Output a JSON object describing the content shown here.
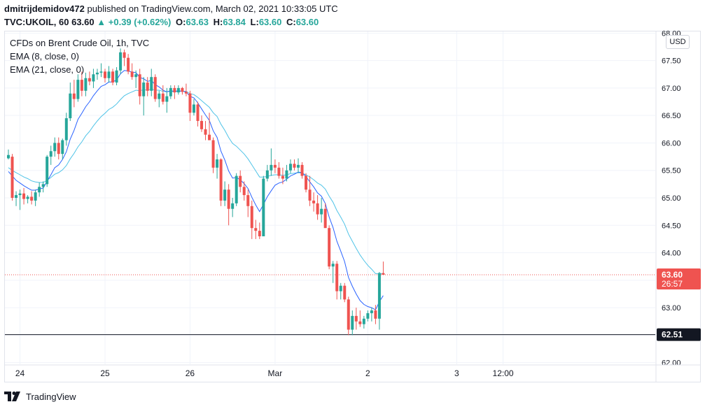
{
  "header": {
    "author": "dmitrijdemidov472",
    "published_text": "published on TradingView.com, March 02, 2021 10:33:05 UTC",
    "symbol": "TVC:UKOIL, 60",
    "last_price": "63.60",
    "change": "+0.39 (+0.62%)",
    "open_label": "O:",
    "open": "63.63",
    "high_label": "H:",
    "high": "63.84",
    "low_label": "L:",
    "low": "63.60",
    "close_label": "C:",
    "close": "63.60"
  },
  "legend": {
    "title": "CFDs on Brent Crude Oil, 1h, TVC",
    "ema_fast": "EMA (8, close, 0)",
    "ema_slow": "EMA (21, close, 0)"
  },
  "currency": "USD",
  "footer": {
    "brand": "TradingView"
  },
  "colors": {
    "up": "#26a69a",
    "down": "#ef5350",
    "ema_fast": "#2962ff",
    "ema_slow": "#4fc3e7",
    "axis_text": "#131722",
    "grid": "#f0f3fa"
  },
  "chart_data": {
    "type": "candlestick",
    "title": "CFDs on Brent Crude Oil, 1h, TVC",
    "ylim": [
      61.97,
      68.03
    ],
    "y_ticks": [
      "62.00",
      "62.50",
      "63.00",
      "63.50",
      "64.00",
      "64.50",
      "65.00",
      "65.50",
      "66.00",
      "66.50",
      "67.00",
      "67.50",
      "68.00"
    ],
    "x_ticks": [
      {
        "label": "24",
        "index": 3
      },
      {
        "label": "25",
        "index": 25
      },
      {
        "label": "26",
        "index": 47
      },
      {
        "label": "Mar",
        "index": 69
      },
      {
        "label": "2",
        "index": 93
      },
      {
        "label": "3",
        "index": 116
      },
      {
        "label": "12:00",
        "index": 128
      }
    ],
    "x_count": 134,
    "current_price": {
      "value": 63.6,
      "label": "63.60",
      "countdown": "26:57"
    },
    "support_line": {
      "value": 62.51,
      "label": "62.51"
    },
    "candles": [
      [
        65.72,
        65.88,
        65.7,
        65.78
      ],
      [
        65.75,
        65.8,
        64.95,
        65.0
      ],
      [
        65.0,
        65.12,
        64.85,
        65.05
      ],
      [
        65.05,
        65.15,
        64.78,
        65.08
      ],
      [
        65.08,
        65.18,
        64.88,
        64.98
      ],
      [
        64.98,
        65.05,
        64.9,
        65.02
      ],
      [
        65.02,
        65.12,
        64.88,
        64.95
      ],
      [
        64.95,
        65.15,
        64.85,
        65.1
      ],
      [
        65.1,
        65.28,
        65.02,
        65.2
      ],
      [
        65.2,
        65.3,
        65.1,
        65.25
      ],
      [
        65.25,
        65.78,
        65.2,
        65.75
      ],
      [
        65.75,
        65.95,
        65.6,
        65.85
      ],
      [
        65.85,
        66.1,
        65.75,
        66.0
      ],
      [
        66.0,
        66.1,
        65.7,
        65.8
      ],
      [
        65.8,
        66.08,
        65.7,
        66.05
      ],
      [
        66.05,
        66.55,
        65.95,
        66.45
      ],
      [
        66.45,
        67.1,
        66.4,
        66.9
      ],
      [
        66.9,
        67.15,
        66.65,
        66.8
      ],
      [
        66.8,
        67.25,
        66.75,
        67.15
      ],
      [
        67.15,
        67.3,
        66.85,
        66.95
      ],
      [
        66.95,
        67.28,
        66.85,
        67.18
      ],
      [
        67.18,
        67.3,
        67.05,
        67.12
      ],
      [
        67.12,
        67.35,
        67.0,
        67.25
      ],
      [
        67.25,
        67.35,
        67.15,
        67.28
      ],
      [
        67.28,
        67.45,
        67.2,
        67.3
      ],
      [
        67.3,
        67.35,
        67.1,
        67.18
      ],
      [
        67.18,
        67.4,
        67.1,
        67.3
      ],
      [
        67.3,
        67.35,
        67.05,
        67.1
      ],
      [
        67.1,
        67.38,
        67.05,
        67.32
      ],
      [
        67.32,
        67.72,
        67.25,
        67.65
      ],
      [
        67.65,
        67.7,
        67.4,
        67.55
      ],
      [
        67.55,
        67.62,
        67.25,
        67.3
      ],
      [
        67.3,
        67.45,
        67.15,
        67.2
      ],
      [
        67.2,
        67.32,
        67.0,
        67.25
      ],
      [
        67.25,
        67.35,
        66.7,
        66.85
      ],
      [
        66.85,
        67.2,
        66.5,
        67.1
      ],
      [
        67.1,
        67.2,
        66.85,
        66.95
      ],
      [
        66.95,
        67.35,
        66.85,
        67.2
      ],
      [
        67.2,
        67.25,
        66.75,
        66.8
      ],
      [
        66.8,
        66.95,
        66.65,
        66.9
      ],
      [
        66.9,
        67.05,
        66.7,
        66.75
      ],
      [
        66.75,
        67.0,
        66.55,
        66.85
      ],
      [
        66.85,
        67.05,
        66.8,
        67.0
      ],
      [
        67.0,
        67.05,
        66.8,
        66.92
      ],
      [
        66.92,
        67.05,
        66.88,
        67.0
      ],
      [
        67.0,
        67.02,
        66.88,
        66.93
      ],
      [
        66.93,
        67.08,
        66.85,
        66.9
      ],
      [
        66.9,
        66.95,
        66.4,
        66.55
      ],
      [
        66.55,
        66.8,
        66.5,
        66.7
      ],
      [
        66.7,
        66.75,
        66.3,
        66.4
      ],
      [
        66.4,
        66.5,
        66.2,
        66.25
      ],
      [
        66.25,
        66.4,
        66.05,
        66.15
      ],
      [
        66.15,
        66.55,
        66.1,
        66.05
      ],
      [
        66.05,
        66.1,
        65.45,
        65.55
      ],
      [
        65.55,
        65.8,
        65.35,
        65.7
      ],
      [
        65.7,
        65.72,
        64.85,
        64.95
      ],
      [
        64.95,
        65.3,
        64.85,
        65.15
      ],
      [
        65.15,
        65.25,
        64.5,
        64.8
      ],
      [
        64.8,
        65.0,
        64.65,
        64.9
      ],
      [
        64.9,
        65.45,
        64.85,
        65.4
      ],
      [
        65.4,
        65.5,
        65.1,
        65.2
      ],
      [
        65.2,
        65.3,
        64.95,
        65.05
      ],
      [
        65.05,
        65.15,
        64.65,
        64.85
      ],
      [
        64.85,
        64.95,
        64.25,
        64.45
      ],
      [
        64.45,
        64.6,
        64.25,
        64.4
      ],
      [
        64.4,
        64.55,
        64.25,
        64.3
      ],
      [
        64.3,
        65.4,
        64.3,
        65.35
      ],
      [
        65.35,
        65.6,
        65.3,
        65.5
      ],
      [
        65.5,
        65.9,
        65.4,
        65.6
      ],
      [
        65.6,
        65.7,
        65.45,
        65.55
      ],
      [
        65.55,
        65.65,
        65.35,
        65.4
      ],
      [
        65.4,
        65.55,
        65.25,
        65.35
      ],
      [
        65.35,
        65.6,
        65.3,
        65.5
      ],
      [
        65.5,
        65.7,
        65.45,
        65.62
      ],
      [
        65.62,
        65.7,
        65.5,
        65.55
      ],
      [
        65.55,
        65.72,
        65.45,
        65.6
      ],
      [
        65.6,
        65.65,
        65.35,
        65.4
      ],
      [
        65.4,
        65.45,
        65.1,
        65.15
      ],
      [
        65.15,
        65.4,
        64.85,
        64.95
      ],
      [
        64.95,
        65.1,
        64.75,
        64.9
      ],
      [
        64.9,
        65.05,
        64.6,
        64.7
      ],
      [
        64.7,
        65.0,
        64.55,
        64.8
      ],
      [
        64.8,
        64.9,
        64.5,
        64.45
      ],
      [
        64.45,
        64.5,
        63.7,
        63.75
      ],
      [
        63.75,
        63.85,
        63.45,
        63.8
      ],
      [
        63.8,
        63.85,
        63.15,
        63.3
      ],
      [
        63.3,
        63.45,
        63.15,
        63.4
      ],
      [
        63.4,
        63.45,
        63.1,
        63.15
      ],
      [
        63.15,
        63.2,
        62.5,
        62.6
      ],
      [
        62.6,
        62.95,
        62.5,
        62.85
      ],
      [
        62.85,
        63.0,
        62.6,
        62.75
      ],
      [
        62.75,
        62.95,
        62.65,
        62.7
      ],
      [
        62.7,
        62.85,
        62.62,
        62.8
      ],
      [
        62.8,
        62.95,
        62.75,
        62.9
      ],
      [
        62.9,
        63.0,
        62.75,
        62.95
      ],
      [
        62.95,
        63.05,
        62.7,
        62.8
      ],
      [
        62.8,
        63.65,
        62.6,
        63.63
      ],
      [
        63.63,
        63.84,
        63.6,
        63.6
      ]
    ],
    "ema_fast_values": [
      65.48,
      65.4,
      65.32,
      65.27,
      65.22,
      65.18,
      65.14,
      65.14,
      65.16,
      65.18,
      65.3,
      65.42,
      65.55,
      65.6,
      65.7,
      65.84,
      66.07,
      66.23,
      66.43,
      66.54,
      66.66,
      66.75,
      66.86,
      66.95,
      67.03,
      67.06,
      67.11,
      67.11,
      67.15,
      67.26,
      67.32,
      67.31,
      67.29,
      67.28,
      67.19,
      67.17,
      67.12,
      67.14,
      67.06,
      67.02,
      66.96,
      66.93,
      66.95,
      66.94,
      66.95,
      66.94,
      66.93,
      66.85,
      66.82,
      66.73,
      66.62,
      66.51,
      66.41,
      66.22,
      66.1,
      65.85,
      65.69,
      65.49,
      65.36,
      65.37,
      65.33,
      65.26,
      65.17,
      65.01,
      64.87,
      64.75,
      64.88,
      65.02,
      65.13,
      65.23,
      65.27,
      65.29,
      65.34,
      65.4,
      65.43,
      65.47,
      65.46,
      65.39,
      65.29,
      65.2,
      65.09,
      65.03,
      64.9,
      64.65,
      64.46,
      64.21,
      64.03,
      63.84,
      63.55,
      63.39,
      63.25,
      63.13,
      63.06,
      63.02,
      63.0,
      62.96,
      63.11,
      63.22
    ],
    "ema_slow_values": [
      65.55,
      65.5,
      65.46,
      65.42,
      65.38,
      65.35,
      65.31,
      65.29,
      65.28,
      65.28,
      65.32,
      65.37,
      65.43,
      65.46,
      65.51,
      65.59,
      65.71,
      65.81,
      65.93,
      66.02,
      66.13,
      66.21,
      66.31,
      66.4,
      66.48,
      66.54,
      66.61,
      66.65,
      66.71,
      66.79,
      66.86,
      66.9,
      66.93,
      66.96,
      66.95,
      66.97,
      66.96,
      66.98,
      66.96,
      66.96,
      66.94,
      66.93,
      66.94,
      66.93,
      66.94,
      66.94,
      66.94,
      66.9,
      66.88,
      66.83,
      66.77,
      66.71,
      66.65,
      66.55,
      66.48,
      66.34,
      66.23,
      66.1,
      65.99,
      65.94,
      65.87,
      65.8,
      65.71,
      65.6,
      65.49,
      65.38,
      65.38,
      65.39,
      65.41,
      65.42,
      65.42,
      65.41,
      65.42,
      65.44,
      65.45,
      65.46,
      65.45,
      65.42,
      65.38,
      65.33,
      65.27,
      65.23,
      65.16,
      65.03,
      64.92,
      64.77,
      64.65,
      64.52,
      64.34,
      64.21,
      64.08,
      63.96,
      63.86,
      63.77,
      63.7,
      63.62,
      63.62,
      63.62
    ]
  }
}
